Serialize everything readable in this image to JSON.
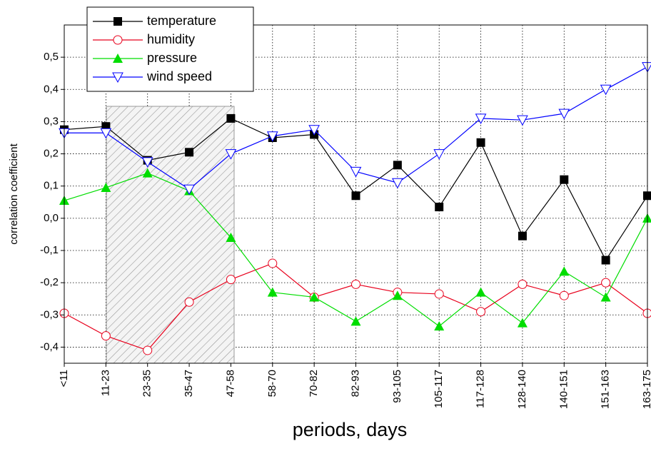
{
  "chart_data": {
    "type": "line",
    "x_label": "periods, days",
    "y_label": "correlation coefficient",
    "categories": [
      "<11",
      "11-23",
      "23-35",
      "35-47",
      "47-58",
      "58-70",
      "70-82",
      "82-93",
      "93-105",
      "105-117",
      "117-128",
      "128-140",
      "140-151",
      "151-163",
      "163-175"
    ],
    "series": [
      {
        "name": "temperature",
        "color": "#000000",
        "marker": "square",
        "values": [
          0.275,
          0.285,
          0.18,
          0.205,
          0.31,
          0.25,
          0.26,
          0.07,
          0.165,
          0.035,
          0.235,
          -0.055,
          0.12,
          -0.13,
          0.07
        ]
      },
      {
        "name": "humidity",
        "color": "#e8001c",
        "marker": "circle",
        "values": [
          -0.295,
          -0.365,
          -0.41,
          -0.26,
          -0.19,
          -0.14,
          -0.245,
          -0.205,
          -0.23,
          -0.235,
          -0.29,
          -0.205,
          -0.24,
          -0.2,
          -0.295
        ]
      },
      {
        "name": "pressure",
        "color": "#00dd00",
        "marker": "triangle",
        "values": [
          0.055,
          0.095,
          0.14,
          0.085,
          -0.06,
          -0.23,
          -0.245,
          -0.32,
          -0.24,
          -0.335,
          -0.23,
          -0.325,
          -0.165,
          -0.245,
          0.0
        ]
      },
      {
        "name": "wind speed",
        "color": "#0000ff",
        "marker": "triangle-down",
        "values": [
          0.265,
          0.265,
          0.175,
          0.09,
          0.2,
          0.255,
          0.275,
          0.145,
          0.11,
          0.2,
          0.31,
          0.305,
          0.325,
          0.4,
          0.47
        ]
      }
    ],
    "ylim": [
      -0.45,
      0.6
    ],
    "yticks": [
      {
        "value": -0.4,
        "label": "-0,4"
      },
      {
        "value": -0.3,
        "label": "-0,3"
      },
      {
        "value": -0.2,
        "label": "-0,2"
      },
      {
        "value": -0.1,
        "label": "-0,1"
      },
      {
        "value": 0,
        "label": "0,0"
      },
      {
        "value": 0.1,
        "label": "0,1"
      },
      {
        "value": 0.2,
        "label": "0,2"
      },
      {
        "value": 0.3,
        "label": "0,3"
      },
      {
        "value": 0.4,
        "label": "0,4"
      },
      {
        "value": 0.5,
        "label": "0,5"
      }
    ],
    "grid": true
  }
}
